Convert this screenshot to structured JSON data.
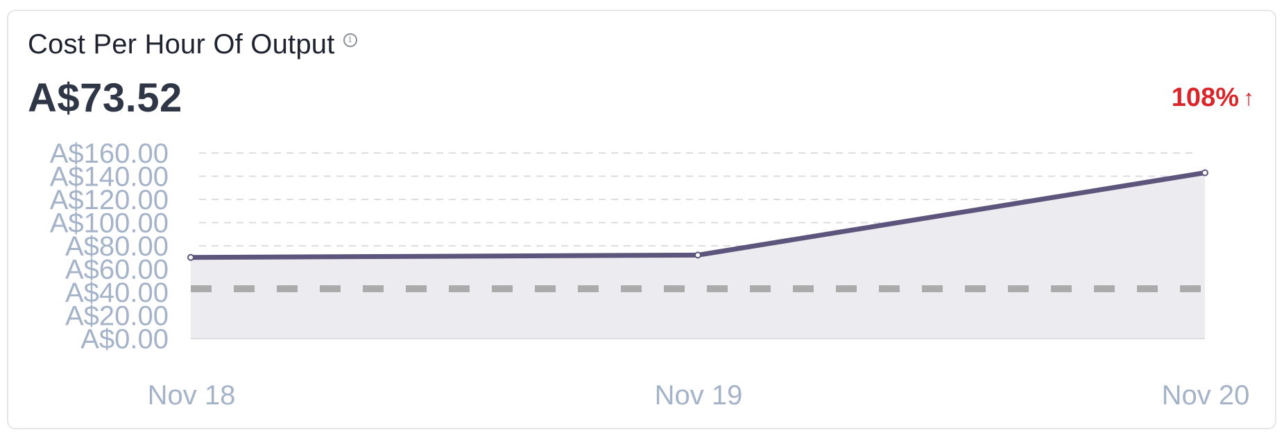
{
  "card": {
    "title": "Cost Per Hour Of Output",
    "info_icon": "info-icon",
    "value": "A$73.52",
    "change": "108%",
    "change_arrow": "↑",
    "change_color": "#d9262b"
  },
  "chart_data": {
    "type": "line",
    "title": "",
    "xlabel": "",
    "ylabel": "",
    "categories": [
      "Nov 18",
      "Nov 19",
      "Nov 20"
    ],
    "series": [
      {
        "values": [
          70,
          72,
          143
        ],
        "color": "#5e557c",
        "fill": "#ecebef"
      }
    ],
    "reference_line": {
      "value": 43,
      "style": "dashed",
      "color": "#ababab"
    },
    "ylim": [
      0,
      160
    ],
    "yticks": [
      0,
      20,
      40,
      60,
      80,
      100,
      120,
      140,
      160
    ],
    "ytick_labels": [
      "A$0.00",
      "A$20.00",
      "A$40.00",
      "A$60.00",
      "A$80.00",
      "A$100.00",
      "A$120.00",
      "A$140.00",
      "A$160.00"
    ],
    "grid": true
  }
}
